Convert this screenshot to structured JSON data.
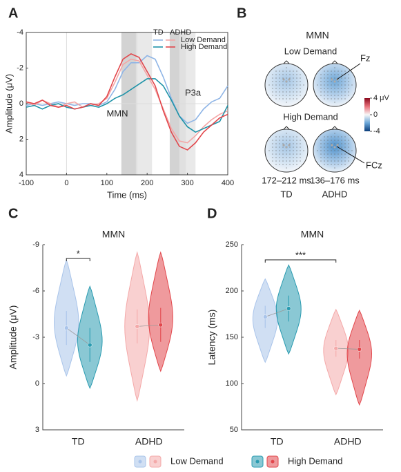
{
  "chart_data": [
    {
      "type": "line",
      "panel": "A",
      "xlabel": "Time (ms)",
      "ylabel": "Amplitude (μV)",
      "xlim": [
        -100,
        400
      ],
      "xticks": [
        -100,
        0,
        100,
        200,
        300,
        400
      ],
      "ylim": [
        -4,
        4
      ],
      "yticks": [
        -4,
        -2,
        0,
        2,
        4
      ],
      "y_inverted": true,
      "legend_columns": [
        "TD",
        "ADHD"
      ],
      "legend_rows": [
        "Low Demand",
        "High Demand"
      ],
      "annotations": [
        "MMN",
        "P3a"
      ],
      "shaded_regions": [
        [
          136,
          176
        ],
        [
          172,
          212
        ],
        [
          256,
          296
        ],
        [
          280,
          320
        ]
      ],
      "x": [
        -100,
        -80,
        -60,
        -40,
        -20,
        0,
        20,
        40,
        60,
        80,
        100,
        120,
        140,
        160,
        180,
        200,
        220,
        240,
        260,
        280,
        300,
        320,
        340,
        360,
        380,
        400
      ],
      "series": [
        {
          "color": "#8fb5e6",
          "values": [
            0.1,
            0,
            0.1,
            0,
            -0.1,
            0,
            0.1,
            0,
            0,
            0.1,
            -0.1,
            -0.8,
            -1.8,
            -2.3,
            -2.3,
            -2.7,
            -2.5,
            -1.5,
            -0.3,
            0.7,
            1.1,
            0.9,
            0.3,
            -0.1,
            -0.3,
            -1
          ]
        },
        {
          "color": "#f4a6a6",
          "values": [
            -0.1,
            0.1,
            -0.2,
            0,
            0.2,
            0,
            -0.1,
            0.2,
            0.1,
            0,
            -0.3,
            -1.2,
            -2.2,
            -2.5,
            -2.4,
            -1.6,
            -0.8,
            0.3,
            1.4,
            2.1,
            2.2,
            1.8,
            1.3,
            0.9,
            0.6,
            0.4
          ]
        },
        {
          "color": "#1f93a8",
          "values": [
            0.2,
            0.1,
            0.3,
            0.1,
            0,
            0.2,
            0.3,
            0.2,
            0.1,
            0.2,
            0,
            -0.3,
            -0.5,
            -0.8,
            -1.1,
            -1.4,
            -1.4,
            -1,
            -0.2,
            0.7,
            1.3,
            1.6,
            1.4,
            1.2,
            1,
            0.1
          ]
        },
        {
          "color": "#e2474c",
          "values": [
            -0.1,
            0,
            -0.2,
            0.1,
            0.2,
            0.1,
            0.3,
            0.2,
            0,
            0.1,
            -0.4,
            -1.5,
            -2.5,
            -2.8,
            -2.6,
            -1.8,
            -1,
            0.4,
            1.6,
            2.4,
            2.6,
            2.2,
            1.6,
            1.2,
            0.8,
            0.6
          ]
        }
      ]
    },
    {
      "type": "topomap",
      "panel": "B",
      "title": "MMN",
      "rows": [
        "Low Demand",
        "High Demand"
      ],
      "columns": [
        "TD",
        "ADHD"
      ],
      "windows": [
        "172–212 ms",
        "136–176 ms"
      ],
      "electrodes": [
        "Fz",
        "FCz"
      ],
      "clim": [
        -4,
        4
      ],
      "cticks": [
        {
          "value": 4,
          "label": "4 μV"
        },
        0,
        -4
      ]
    },
    {
      "type": "violin",
      "panel": "C",
      "title": "MMN",
      "ylabel": "Amplitude (μV)",
      "categories": [
        "TD",
        "ADHD"
      ],
      "ylim": [
        -9,
        3
      ],
      "yticks": [
        -9,
        -6,
        -3,
        0,
        3
      ],
      "y_inverted": true,
      "significance": "*",
      "series": [
        {
          "name": "Low Demand",
          "colors": [
            "#a9c4ea",
            "#f4a9a9"
          ],
          "values": [
            -3.6,
            -3.7
          ],
          "errors": [
            1.1,
            1.1
          ],
          "mins": [
            -0.5,
            1.1
          ],
          "maxs": [
            -8,
            -8.5
          ]
        },
        {
          "name": "High Demand",
          "colors": [
            "#2a9bb0",
            "#e2474c"
          ],
          "values": [
            -2.5,
            -3.8
          ],
          "errors": [
            1.1,
            1.1
          ],
          "mins": [
            0.3,
            -0.8
          ],
          "maxs": [
            -6.3,
            -8.5
          ]
        }
      ]
    },
    {
      "type": "violin",
      "panel": "D",
      "title": "MMN",
      "ylabel": "Latency (ms)",
      "categories": [
        "TD",
        "ADHD"
      ],
      "ylim": [
        50,
        250
      ],
      "yticks": [
        50,
        100,
        150,
        200,
        250
      ],
      "significance": "***",
      "series": [
        {
          "name": "Low Demand",
          "colors": [
            "#a9c4ea",
            "#f4a9a9"
          ],
          "values": [
            172,
            138
          ],
          "errors": [
            12,
            9
          ],
          "mins": [
            123,
            88
          ],
          "maxs": [
            213,
            180
          ]
        },
        {
          "name": "High Demand",
          "colors": [
            "#2a9bb0",
            "#e2474c"
          ],
          "values": [
            181,
            137
          ],
          "errors": [
            14,
            10
          ],
          "mins": [
            132,
            77
          ],
          "maxs": [
            228,
            179
          ]
        }
      ]
    }
  ]
}
